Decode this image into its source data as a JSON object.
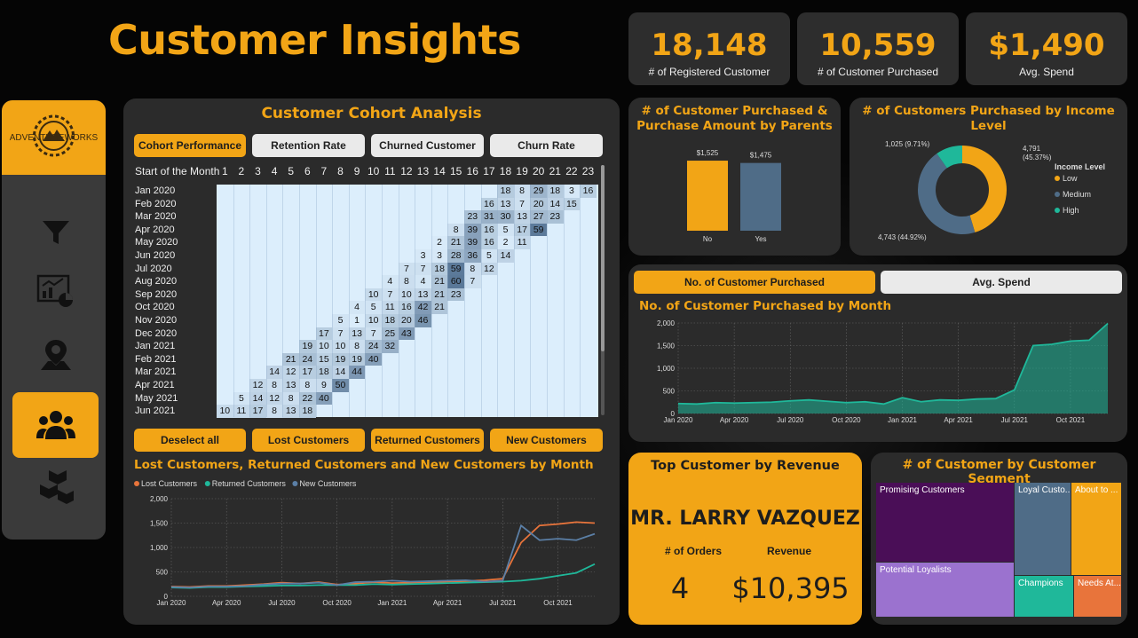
{
  "header": {
    "title": "Customer Insights"
  },
  "kpis": [
    {
      "value": "18,148",
      "label": "# of Registered Customer"
    },
    {
      "value": "10,559",
      "label": "# of Customer Purchased"
    },
    {
      "value": "$1,490",
      "label": "Avg. Spend"
    }
  ],
  "logo": {
    "text": "ADVENTUREWORKS"
  },
  "nav": [
    {
      "icon": "filter-icon"
    },
    {
      "icon": "report-icon"
    },
    {
      "icon": "map-pin-icon"
    },
    {
      "icon": "people-icon",
      "active": true
    },
    {
      "icon": "boxes-icon"
    }
  ],
  "cohort": {
    "title": "Customer Cohort Analysis",
    "tabs": [
      "Cohort Performance",
      "Retention Rate",
      "Churned Customer",
      "Churn Rate"
    ],
    "start_label": "Start of the Month",
    "columns": [
      "1",
      "2",
      "3",
      "4",
      "5",
      "6",
      "7",
      "8",
      "9",
      "10",
      "11",
      "12",
      "13",
      "14",
      "15",
      "16",
      "17",
      "18",
      "19",
      "20",
      "21",
      "22",
      "23"
    ],
    "rows": [
      {
        "label": "Jan 2020",
        "start": 17,
        "values": [
          18,
          8,
          29,
          18,
          3,
          16
        ]
      },
      {
        "label": "Feb 2020",
        "start": 16,
        "values": [
          16,
          13,
          7,
          20,
          14,
          15
        ]
      },
      {
        "label": "Mar 2020",
        "start": 15,
        "values": [
          23,
          31,
          30,
          13,
          27,
          23
        ]
      },
      {
        "label": "Apr 2020",
        "start": 14,
        "values": [
          8,
          39,
          16,
          5,
          17,
          59
        ]
      },
      {
        "label": "May 2020",
        "start": 13,
        "values": [
          2,
          21,
          39,
          16,
          2,
          11
        ]
      },
      {
        "label": "Jun 2020",
        "start": 12,
        "values": [
          3,
          3,
          28,
          36,
          5,
          14
        ]
      },
      {
        "label": "Jul 2020",
        "start": 11,
        "values": [
          7,
          7,
          18,
          59,
          8,
          12
        ]
      },
      {
        "label": "Aug 2020",
        "start": 10,
        "values": [
          4,
          8,
          4,
          21,
          60,
          7
        ]
      },
      {
        "label": "Sep 2020",
        "start": 9,
        "values": [
          10,
          7,
          10,
          13,
          21,
          23
        ]
      },
      {
        "label": "Oct 2020",
        "start": 8,
        "values": [
          4,
          5,
          11,
          16,
          42,
          21
        ]
      },
      {
        "label": "Nov 2020",
        "start": 7,
        "values": [
          5,
          1,
          10,
          18,
          20,
          46
        ]
      },
      {
        "label": "Dec 2020",
        "start": 6,
        "values": [
          17,
          7,
          13,
          7,
          25,
          43
        ]
      },
      {
        "label": "Jan 2021",
        "start": 5,
        "values": [
          19,
          10,
          10,
          8,
          24,
          32
        ]
      },
      {
        "label": "Feb 2021",
        "start": 4,
        "values": [
          21,
          24,
          15,
          19,
          19,
          40
        ]
      },
      {
        "label": "Mar 2021",
        "start": 3,
        "values": [
          14,
          12,
          17,
          18,
          14,
          44
        ]
      },
      {
        "label": "Apr 2021",
        "start": 2,
        "values": [
          12,
          8,
          13,
          8,
          9,
          50
        ]
      },
      {
        "label": "May 2021",
        "start": 1,
        "values": [
          5,
          14,
          12,
          8,
          22,
          40
        ]
      },
      {
        "label": "Jun 2021",
        "start": 0,
        "values": [
          10,
          11,
          17,
          8,
          13,
          18
        ]
      }
    ]
  },
  "lrn_buttons": [
    "Deselect all",
    "Lost Customers",
    "Returned Customers",
    "New Customers"
  ],
  "lrn_chart": {
    "title": "Lost Customers, Returned Customers and New Customers by Month",
    "chart_data": {
      "type": "line",
      "x": [
        "Jan 2020",
        "Feb 2020",
        "Mar 2020",
        "Apr 2020",
        "May 2020",
        "Jun 2020",
        "Jul 2020",
        "Aug 2020",
        "Sep 2020",
        "Oct 2020",
        "Nov 2020",
        "Dec 2020",
        "Jan 2021",
        "Feb 2021",
        "Mar 2021",
        "Apr 2021",
        "May 2021",
        "Jun 2021",
        "Jul 2021",
        "Aug 2021",
        "Sep 2021",
        "Oct 2021",
        "Nov 2021",
        "Dec 2021"
      ],
      "x_ticks": [
        "Jan 2020",
        "Apr 2020",
        "Jul 2020",
        "Oct 2020",
        "Jan 2021",
        "Apr 2021",
        "Jul 2021",
        "Oct 2021"
      ],
      "ylim": [
        0,
        2000
      ],
      "y_ticks": [
        "0",
        "500",
        "1,000",
        "1,500",
        "2,000"
      ],
      "legend": "top-left",
      "series": [
        {
          "name": "Lost Customers",
          "color": "#E8743B",
          "values": [
            200,
            190,
            210,
            210,
            230,
            250,
            280,
            260,
            290,
            240,
            260,
            290,
            270,
            280,
            290,
            300,
            310,
            330,
            360,
            1100,
            1450,
            1480,
            1520,
            1500
          ]
        },
        {
          "name": "Returned Customers",
          "color": "#1FB89A",
          "values": [
            180,
            170,
            190,
            190,
            200,
            210,
            220,
            220,
            230,
            230,
            230,
            250,
            240,
            250,
            260,
            270,
            280,
            290,
            300,
            320,
            360,
            420,
            480,
            660
          ]
        },
        {
          "name": "New Customers",
          "color": "#5B7FA6",
          "values": [
            190,
            180,
            200,
            200,
            210,
            240,
            260,
            260,
            280,
            230,
            290,
            300,
            320,
            300,
            310,
            320,
            330,
            300,
            320,
            1450,
            1150,
            1180,
            1150,
            1280
          ]
        }
      ]
    }
  },
  "parents_chart": {
    "title": "# of Customer Purchased & Purchase Amount by Parents",
    "chart_data": {
      "type": "bar",
      "categories": [
        "No",
        "Yes"
      ],
      "values": [
        1525,
        1475
      ],
      "value_labels": [
        "$1,525",
        "$1,475"
      ],
      "colors": [
        "#F2A516",
        "#4F6C87"
      ]
    }
  },
  "income_chart": {
    "title": "# of Customers Purchased by Income Level",
    "legend_title": "Income Level",
    "chart_data": {
      "type": "pie",
      "categories": [
        "Low",
        "Medium",
        "High"
      ],
      "values": [
        4791,
        4743,
        1025
      ],
      "labels": [
        "4,791 (45.37%)",
        "4,743 (44.92%)",
        "1,025 (9.71%)"
      ],
      "label_lines": [
        [
          "4,791",
          "(45.37%)"
        ],
        [
          "4,743 (44.92%)"
        ],
        [
          "1,025 (9.71%)"
        ]
      ],
      "colors": [
        "#F2A516",
        "#4F6C87",
        "#1FB89A"
      ]
    }
  },
  "month_tabs": [
    "No. of Customer Purchased",
    "Avg. Spend"
  ],
  "month_chart": {
    "title": "No. of Customer Purchased by Month",
    "chart_data": {
      "type": "area",
      "x": [
        "Jan 2020",
        "Feb 2020",
        "Mar 2020",
        "Apr 2020",
        "May 2020",
        "Jun 2020",
        "Jul 2020",
        "Aug 2020",
        "Sep 2020",
        "Oct 2020",
        "Nov 2020",
        "Dec 2020",
        "Jan 2021",
        "Feb 2021",
        "Mar 2021",
        "Apr 2021",
        "May 2021",
        "Jun 2021",
        "Jul 2021",
        "Aug 2021",
        "Sep 2021",
        "Oct 2021",
        "Nov 2021",
        "Dec 2021"
      ],
      "x_ticks": [
        "Jan 2020",
        "Apr 2020",
        "Jul 2020",
        "Oct 2020",
        "Jan 2021",
        "Apr 2021",
        "Jul 2021",
        "Oct 2021"
      ],
      "ylim": [
        0,
        2000
      ],
      "y_ticks": [
        "0",
        "500",
        "1,000",
        "1,500",
        "2,000"
      ],
      "values": [
        220,
        210,
        240,
        230,
        240,
        250,
        280,
        300,
        270,
        240,
        260,
        210,
        350,
        260,
        300,
        290,
        320,
        330,
        520,
        1500,
        1530,
        1600,
        1620,
        1990
      ],
      "color": "#1FB89A"
    }
  },
  "top_customer": {
    "title": "Top Customer by Revenue",
    "name": "MR. LARRY VAZQUEZ",
    "orders_label": "# of Orders",
    "orders": "4",
    "revenue_label": "Revenue",
    "revenue": "$10,395"
  },
  "segment_chart": {
    "title": "# of Customer by Customer Segment",
    "chart_data": {
      "type": "treemap",
      "segments": [
        {
          "name": "Promising Customers",
          "color": "#4A0E57"
        },
        {
          "name": "Potential Loyalists",
          "color": "#9B72CF"
        },
        {
          "name": "Loyal Custo...",
          "color": "#4F6C87"
        },
        {
          "name": "About to ...",
          "color": "#F2A516"
        },
        {
          "name": "Champions",
          "color": "#1FB89A"
        },
        {
          "name": "Needs At...",
          "color": "#E8743B"
        }
      ]
    }
  }
}
